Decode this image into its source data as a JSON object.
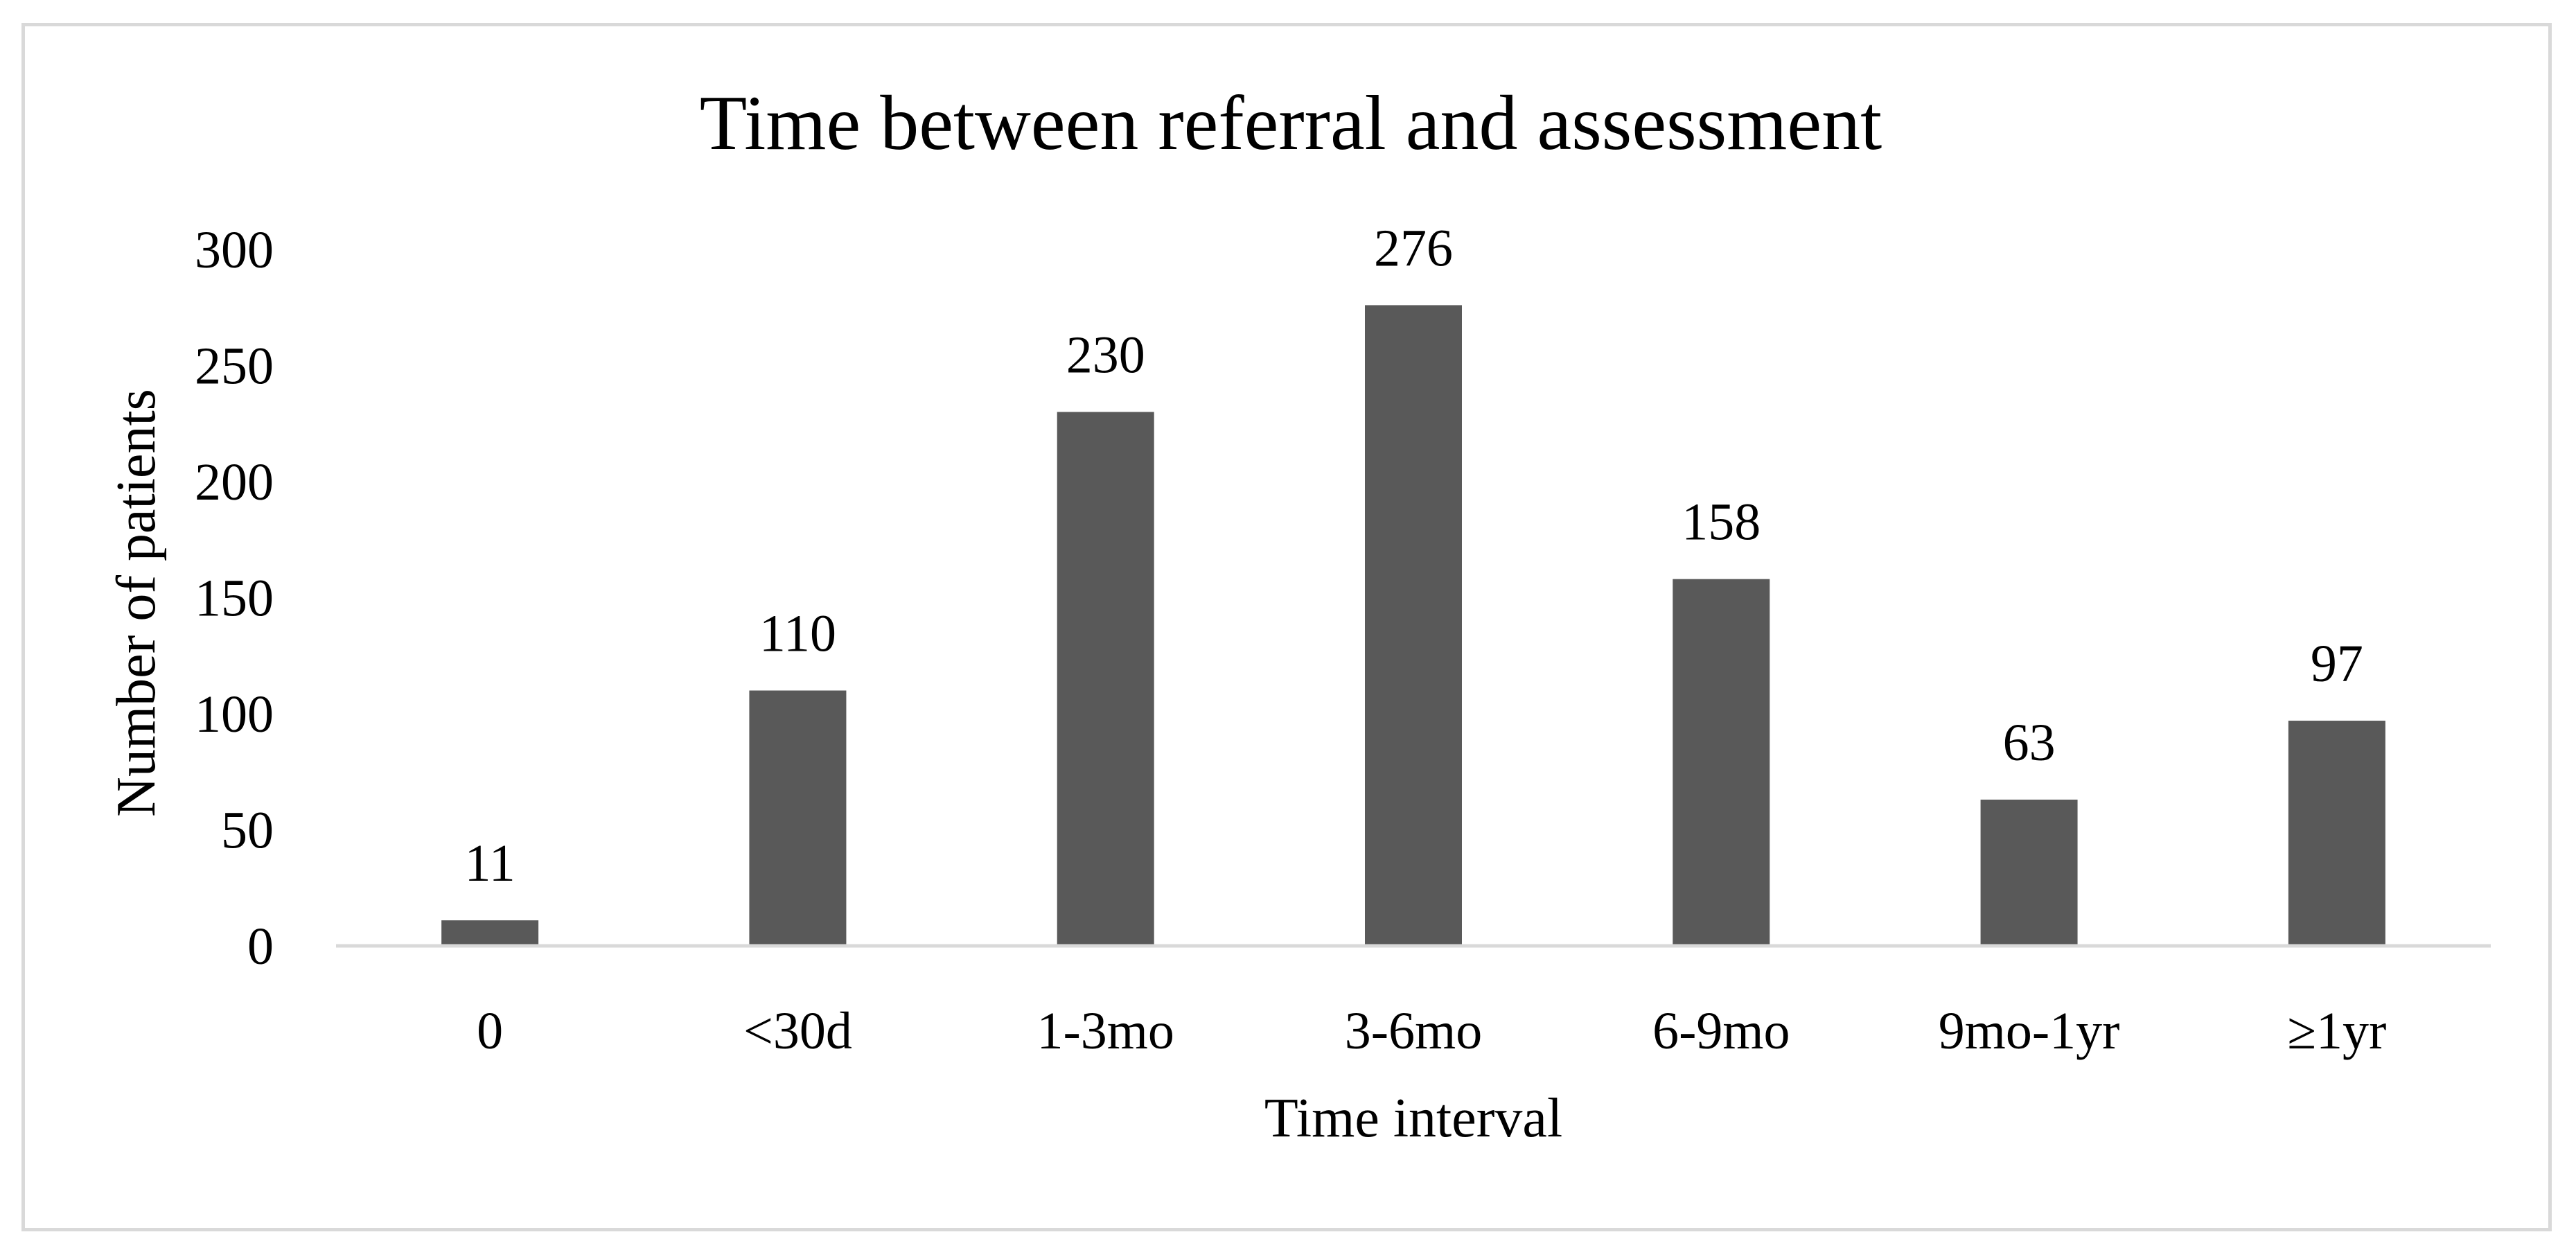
{
  "chart_data": {
    "type": "bar",
    "title": "Time between referral and assessment",
    "xlabel": "Time interval",
    "ylabel": "Number of patients",
    "categories": [
      "0",
      "<30d",
      "1-3mo",
      "3-6mo",
      "6-9mo",
      "9mo-1yr",
      "≥1yr"
    ],
    "values": [
      11,
      110,
      230,
      276,
      158,
      63,
      97
    ],
    "ylim": [
      0,
      300
    ],
    "yticks": [
      "0",
      "50",
      "100",
      "150",
      "200",
      "250",
      "300"
    ],
    "data_labels": [
      "11",
      "110",
      "230",
      "276",
      "158",
      "63",
      "97"
    ],
    "grid": false,
    "legend": "none",
    "colors": {
      "bar": "#595959",
      "axis": "#d9d9d9",
      "frame": "#d9d9d9"
    }
  }
}
